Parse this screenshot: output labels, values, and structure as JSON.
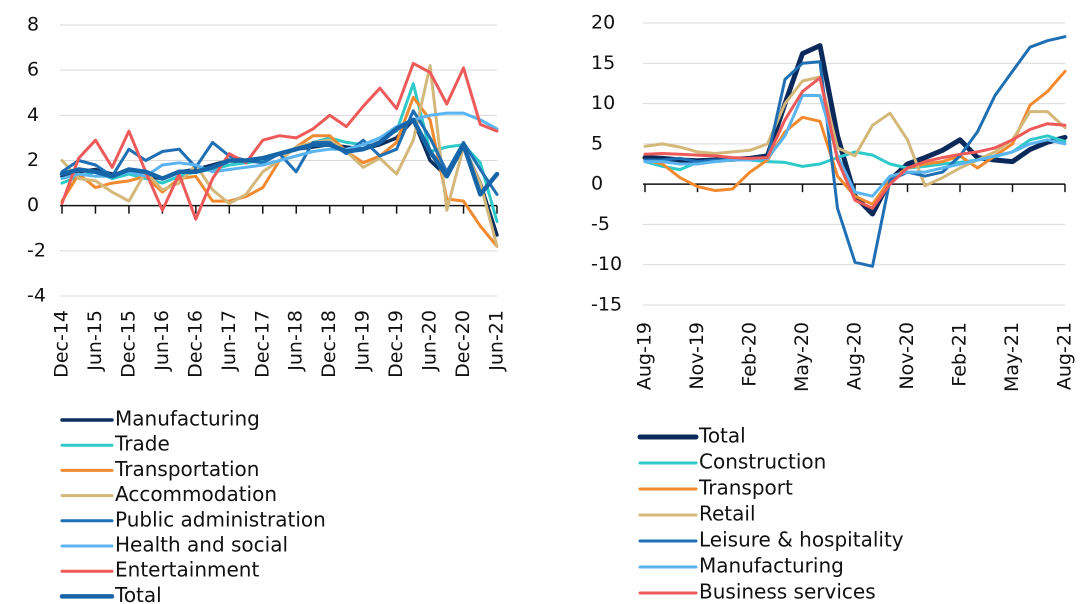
{
  "chart_data": [
    {
      "type": "line",
      "legend": "bottom",
      "grid": true,
      "categories": [
        "Dec-14",
        null,
        "Jun-15",
        null,
        "Dec-15",
        null,
        "Jun-16",
        null,
        "Dec-16",
        null,
        "Jun-17",
        null,
        "Dec-17",
        null,
        "Jun-18",
        null,
        "Dec-18",
        null,
        "Jun-19",
        null,
        "Dec-19",
        null,
        "Jun-20",
        null,
        "Dec-20",
        null,
        "Jun-21"
      ],
      "ylim": [
        -4,
        8
      ],
      "yticks": [
        -4,
        -2,
        0,
        2,
        4,
        6,
        8
      ],
      "series": [
        {
          "name": "Manufacturing",
          "color": "#0d2f5e",
          "linewidth": 3.5,
          "values": [
            1.3,
            1.5,
            1.6,
            1.4,
            1.5,
            1.3,
            1.2,
            1.5,
            1.6,
            1.8,
            2.0,
            1.9,
            2.1,
            2.3,
            2.5,
            2.6,
            2.7,
            2.6,
            2.5,
            2.7,
            3.0,
            3.8,
            2.0,
            1.3,
            2.6,
            1.0,
            -1.3
          ]
        },
        {
          "name": "Trade",
          "color": "#2ec9c9",
          "linewidth": 3,
          "values": [
            1.0,
            1.3,
            1.5,
            1.2,
            1.4,
            1.2,
            1.0,
            1.3,
            1.5,
            1.6,
            1.8,
            1.9,
            2.0,
            2.3,
            2.5,
            2.8,
            3.0,
            2.8,
            2.7,
            3.0,
            3.3,
            5.4,
            2.4,
            2.6,
            2.7,
            1.9,
            -0.7
          ]
        },
        {
          "name": "Transportation",
          "color": "#f28a30",
          "linewidth": 3,
          "values": [
            0.2,
            1.4,
            0.8,
            1.0,
            1.1,
            1.3,
            0.6,
            1.2,
            1.3,
            0.2,
            0.2,
            0.4,
            0.8,
            2.0,
            2.6,
            3.1,
            3.1,
            2.4,
            1.9,
            2.2,
            2.8,
            4.8,
            3.8,
            0.3,
            0.2,
            -0.9,
            -1.8
          ]
        },
        {
          "name": "Accommodation",
          "color": "#d4b87a",
          "linewidth": 3,
          "values": [
            2.0,
            1.2,
            1.1,
            0.6,
            0.2,
            1.5,
            0.7,
            1.0,
            1.8,
            0.7,
            0.1,
            0.5,
            1.5,
            2.0,
            2.6,
            2.8,
            2.9,
            2.4,
            1.7,
            2.1,
            1.4,
            2.9,
            6.2,
            -0.2,
            2.6,
            1.0,
            -1.8
          ]
        },
        {
          "name": "Public administration",
          "color": "#1f6fb5",
          "linewidth": 3,
          "values": [
            1.5,
            2.0,
            1.8,
            1.3,
            2.5,
            2.0,
            2.4,
            2.5,
            1.7,
            2.8,
            2.2,
            2.0,
            1.9,
            2.3,
            1.5,
            2.8,
            2.8,
            2.3,
            2.9,
            2.2,
            2.5,
            4.2,
            3.0,
            1.5,
            2.8,
            1.6,
            0.5
          ]
        },
        {
          "name": "Health and social",
          "color": "#5ab4f0",
          "linewidth": 3,
          "values": [
            1.2,
            1.4,
            1.3,
            1.3,
            1.5,
            1.3,
            1.8,
            1.9,
            1.8,
            1.5,
            1.6,
            1.7,
            1.8,
            2.0,
            2.2,
            2.4,
            2.5,
            2.5,
            2.7,
            3.0,
            3.5,
            3.8,
            4.0,
            4.1,
            4.1,
            3.8,
            3.4
          ]
        },
        {
          "name": "Entertainment",
          "color": "#ee5a5a",
          "linewidth": 3,
          "values": [
            0.1,
            2.1,
            2.9,
            1.7,
            3.3,
            1.5,
            -0.2,
            1.4,
            -0.6,
            1.2,
            2.3,
            1.9,
            2.9,
            3.1,
            3.0,
            3.4,
            4.0,
            3.5,
            4.4,
            5.2,
            4.3,
            6.3,
            5.9,
            4.5,
            6.1,
            3.6,
            3.3
          ]
        },
        {
          "name": "Total",
          "color": "#1565a8",
          "linewidth": 4.5,
          "values": [
            1.4,
            1.6,
            1.5,
            1.3,
            1.6,
            1.5,
            1.2,
            1.5,
            1.5,
            1.7,
            2.0,
            2.0,
            2.1,
            2.3,
            2.5,
            2.7,
            2.7,
            2.4,
            2.5,
            2.8,
            3.4,
            3.8,
            2.4,
            1.3,
            2.7,
            0.5,
            1.4
          ]
        }
      ]
    },
    {
      "type": "line",
      "legend": "bottom",
      "grid": true,
      "categories": [
        "Aug-19",
        null,
        null,
        "Nov-19",
        null,
        null,
        "Feb-20",
        null,
        null,
        "May-20",
        null,
        null,
        "Aug-20",
        null,
        null,
        "Nov-20",
        null,
        null,
        "Feb-21",
        null,
        null,
        "May-21",
        null,
        null,
        "Aug-21"
      ],
      "ylim": [
        -15,
        20
      ],
      "yticks": [
        -15,
        -10,
        -5,
        0,
        5,
        10,
        15,
        20
      ],
      "series": [
        {
          "name": "Total",
          "color": "#0b2a5b",
          "linewidth": 5,
          "values": [
            3.3,
            3.2,
            3.0,
            2.9,
            3.0,
            3.1,
            3.2,
            3.5,
            10,
            16.2,
            17.2,
            6,
            -1.5,
            -3.7,
            0.5,
            2.5,
            3.3,
            4.2,
            5.5,
            3.3,
            3.0,
            2.8,
            4.3,
            5.2,
            5.8
          ]
        },
        {
          "name": "Construction",
          "color": "#2ec9c9",
          "linewidth": 3,
          "values": [
            2.8,
            2.2,
            1.8,
            2.7,
            2.8,
            3.0,
            3.0,
            2.8,
            2.7,
            2.2,
            2.5,
            3.3,
            4.0,
            3.6,
            2.5,
            2.0,
            2.2,
            2.5,
            2.7,
            3.0,
            3.4,
            4.0,
            5.5,
            6.0,
            5.3
          ]
        },
        {
          "name": "Transport",
          "color": "#f28a30",
          "linewidth": 3,
          "values": [
            3.0,
            2.5,
            0.8,
            -0.3,
            -0.8,
            -0.6,
            1.5,
            3.0,
            6.5,
            8.3,
            7.8,
            1.0,
            -1.5,
            -2.5,
            0.5,
            2.0,
            2.5,
            2.8,
            3.5,
            2.0,
            3.5,
            5.0,
            9.8,
            11.5,
            14.0
          ]
        },
        {
          "name": "Retail",
          "color": "#d4b87a",
          "linewidth": 3,
          "values": [
            4.7,
            5.0,
            4.6,
            4.0,
            3.8,
            4.0,
            4.2,
            5.0,
            10,
            12.8,
            13.3,
            4.5,
            3.5,
            7.3,
            8.8,
            5.5,
            -0.2,
            0.8,
            2.0,
            3.0,
            4.0,
            5.5,
            9.0,
            9.0,
            7.0
          ]
        },
        {
          "name": "Leisure & hospitality",
          "color": "#1f6fb5",
          "linewidth": 3,
          "values": [
            3.0,
            3.0,
            3.2,
            2.8,
            3.0,
            3.0,
            3.0,
            3.2,
            13,
            15,
            15.2,
            -3,
            -9.7,
            -10.2,
            0.5,
            1.5,
            1.0,
            1.5,
            3.5,
            6.5,
            11,
            14,
            17,
            17.8,
            18.3
          ]
        },
        {
          "name": "Manufacturing",
          "color": "#5ab4f0",
          "linewidth": 3,
          "values": [
            2.8,
            2.8,
            2.5,
            2.5,
            2.8,
            3.0,
            3.0,
            3.2,
            6,
            11,
            11,
            3.5,
            -1.0,
            -1.5,
            1.0,
            1.5,
            1.5,
            2.0,
            2.5,
            3.0,
            3.5,
            4.0,
            5.0,
            5.5,
            5.0
          ]
        },
        {
          "name": "Business services",
          "color": "#ee5a5a",
          "linewidth": 3,
          "values": [
            3.7,
            3.8,
            3.7,
            3.6,
            3.5,
            3.3,
            3.2,
            3.3,
            8,
            11.5,
            13.2,
            3.0,
            -2.0,
            -3.0,
            0.0,
            2.0,
            2.8,
            3.3,
            3.7,
            4.0,
            4.5,
            5.5,
            6.8,
            7.5,
            7.3
          ]
        }
      ]
    }
  ]
}
